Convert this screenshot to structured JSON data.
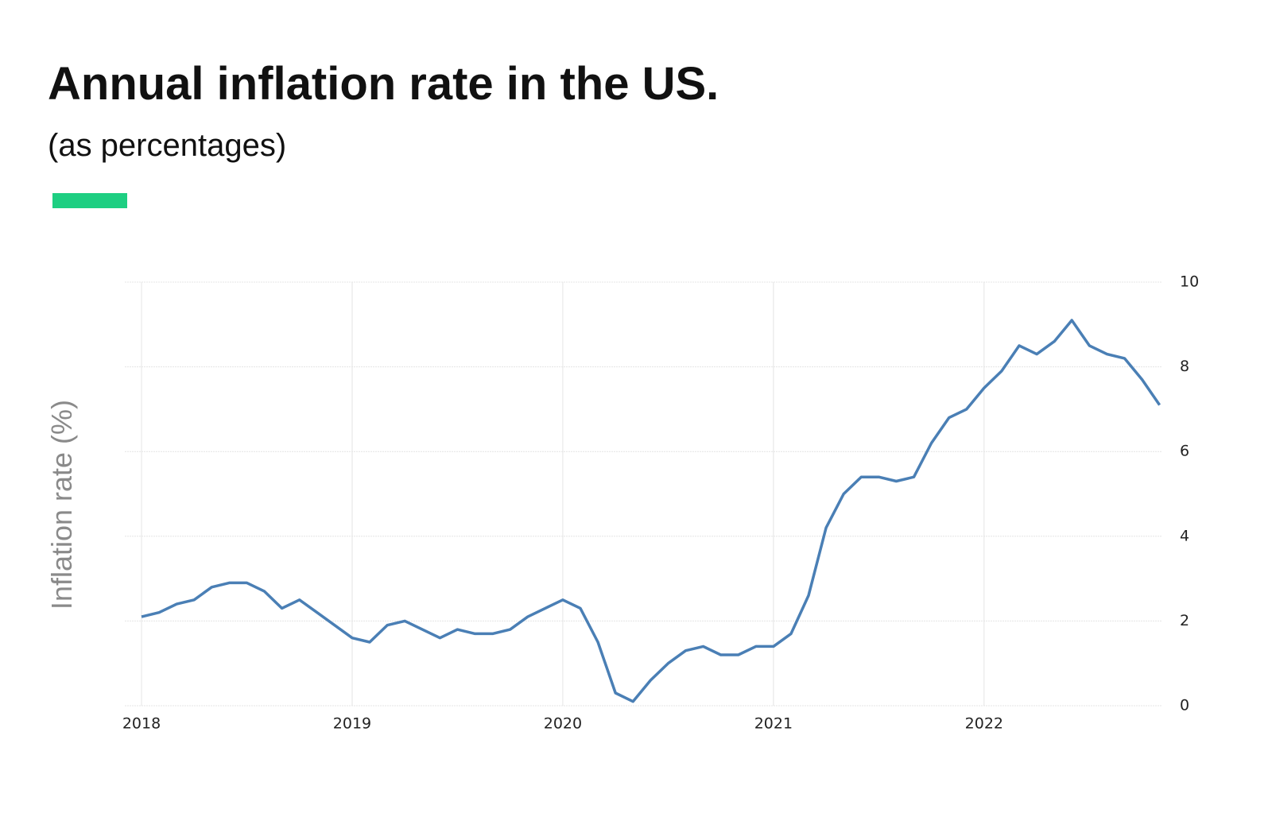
{
  "chart_data": {
    "type": "line",
    "title": "Annual inflation rate in the US.",
    "subtitle": "(as percentages)",
    "y_label": "Inflation rate (%)",
    "categories": [
      "2018",
      null,
      null,
      null,
      null,
      null,
      null,
      null,
      null,
      null,
      null,
      null,
      "2019",
      null,
      null,
      null,
      null,
      null,
      null,
      null,
      null,
      null,
      null,
      null,
      "2020",
      null,
      null,
      null,
      null,
      null,
      null,
      null,
      null,
      null,
      null,
      null,
      "2021",
      null,
      null,
      null,
      null,
      null,
      null,
      null,
      null,
      null,
      null,
      null,
      "2022",
      null,
      null,
      null,
      null,
      null,
      null,
      null,
      null,
      null,
      null
    ],
    "series": [
      {
        "name": "Inflation rate",
        "color": "#4a7fb5",
        "values": [
          2.1,
          2.2,
          2.4,
          2.5,
          2.8,
          2.9,
          2.9,
          2.7,
          2.3,
          2.5,
          2.2,
          1.9,
          1.6,
          1.5,
          1.9,
          2.0,
          1.8,
          1.6,
          1.8,
          1.7,
          1.7,
          1.8,
          2.1,
          2.3,
          2.5,
          2.3,
          1.5,
          0.3,
          0.1,
          0.6,
          1.0,
          1.3,
          1.4,
          1.2,
          1.2,
          1.4,
          1.4,
          1.7,
          2.6,
          4.2,
          5.0,
          5.4,
          5.4,
          5.3,
          5.4,
          6.2,
          6.8,
          7.0,
          7.5,
          7.9,
          8.5,
          8.3,
          8.6,
          9.1,
          8.5,
          8.3,
          8.2,
          7.7,
          7.1
        ]
      }
    ],
    "ylim": [
      0,
      10
    ],
    "yticks": [
      0,
      2,
      4,
      6,
      8,
      10
    ],
    "grid": true,
    "y_axis_side": "right"
  }
}
